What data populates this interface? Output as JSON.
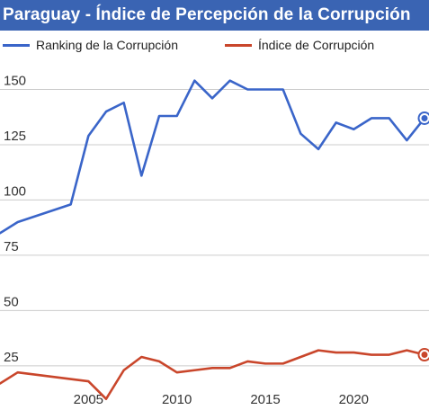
{
  "title": "Paraguay - Índice de Percepción de la Corrupción",
  "colors": {
    "title_background": "#3a64b3",
    "title_text": "#ffffff",
    "series_1": "#3a65c9",
    "series_2": "#c9462b",
    "grid": "#cccccc"
  },
  "chart_data": {
    "type": "line",
    "title": "Paraguay - Índice de Percepción de la Corrupción",
    "xlabel": "",
    "ylabel": "",
    "xlim": [
      2000,
      2024
    ],
    "ylim": [
      5,
      162
    ],
    "x_ticks": [
      2005,
      2010,
      2015,
      2020
    ],
    "y_ticks": [
      25,
      50,
      75,
      100,
      125,
      150
    ],
    "grid": true,
    "legend_position": "top",
    "series": [
      {
        "name": "Ranking de la Corrupción",
        "color": "#3a65c9",
        "x": [
          2000,
          2001,
          2004,
          2005,
          2006,
          2007,
          2008,
          2009,
          2010,
          2011,
          2012,
          2013,
          2014,
          2015,
          2016,
          2017,
          2018,
          2019,
          2020,
          2021,
          2022,
          2023,
          2024
        ],
        "y": [
          85,
          90,
          98,
          129,
          140,
          144,
          111,
          138,
          138,
          154,
          146,
          154,
          150,
          150,
          150,
          130,
          123,
          135,
          132,
          137,
          137,
          127,
          137
        ]
      },
      {
        "name": "Índice de Corrupción",
        "color": "#c9462b",
        "x": [
          2000,
          2001,
          2005,
          2006,
          2007,
          2008,
          2009,
          2010,
          2011,
          2012,
          2013,
          2014,
          2015,
          2016,
          2017,
          2018,
          2019,
          2020,
          2021,
          2022,
          2023,
          2024
        ],
        "y": [
          17,
          22,
          18,
          10,
          23,
          29,
          27,
          22,
          23,
          24,
          24,
          27,
          26,
          26,
          29,
          32,
          31,
          31,
          30,
          30,
          32,
          30
        ]
      }
    ]
  }
}
